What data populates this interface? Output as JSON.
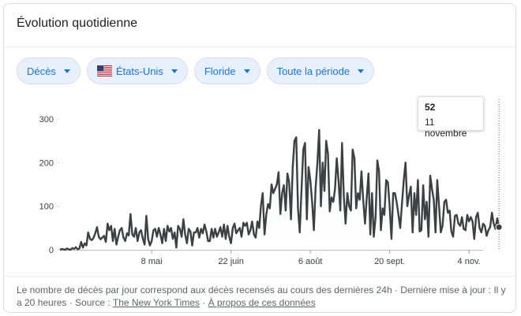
{
  "title": "Évolution quotidienne",
  "filters": [
    {
      "label": "Décès"
    },
    {
      "label": "États-Unis",
      "flag": "us-flag-icon"
    },
    {
      "label": "Floride"
    },
    {
      "label": "Toute la période"
    }
  ],
  "tooltip": {
    "value": "52",
    "date": "11 novembre"
  },
  "footer": {
    "text": "Le nombre de décès par jour correspond aux décès recensés au cours des dernières 24h · Dernière mise à jour : Il y a 20 heures · Source :",
    "source_link": "The New York Times",
    "dot": "·",
    "about_link": "À propos de ces données"
  },
  "colors": {
    "line": "#3c4043",
    "area": "#e8eaed",
    "chip_bg": "#e8f0fe",
    "chip_text": "#1a73e8"
  },
  "chart_data": {
    "type": "line",
    "title": "",
    "xlabel": "",
    "ylabel": "",
    "ylim": [
      0,
      300
    ],
    "yticks": [
      0,
      100,
      200,
      300
    ],
    "x_range_days": [
      0,
      240
    ],
    "xticks": [
      {
        "day": 52,
        "label": "8 mai"
      },
      {
        "day": 97,
        "label": "22 juin"
      },
      {
        "day": 142,
        "label": "6 août"
      },
      {
        "day": 187,
        "label": "20 sept."
      },
      {
        "day": 232,
        "label": "4 nov."
      }
    ],
    "series": [
      {
        "name": "",
        "start_day": 0,
        "values": [
          0,
          2,
          1,
          0,
          3,
          1,
          0,
          4,
          2,
          6,
          1,
          3,
          18,
          5,
          15,
          10,
          40,
          25,
          22,
          27,
          38,
          52,
          30,
          24,
          28,
          32,
          18,
          60,
          45,
          55,
          20,
          48,
          12,
          30,
          45,
          50,
          28,
          20,
          38,
          33,
          82,
          35,
          30,
          50,
          20,
          40,
          45,
          25,
          12,
          78,
          25,
          10,
          20,
          45,
          48,
          30,
          50,
          35,
          15,
          48,
          20,
          55,
          42,
          50,
          25,
          40,
          5,
          55,
          48,
          30,
          70,
          35,
          15,
          48,
          42,
          10,
          40,
          40,
          50,
          28,
          48,
          38,
          58,
          42,
          20,
          20,
          48,
          28,
          48,
          30,
          40,
          52,
          30,
          58,
          25,
          55,
          30,
          15,
          50,
          60,
          38,
          45,
          50,
          30,
          62,
          55,
          62,
          35,
          45,
          65,
          35,
          28,
          65,
          50,
          102,
          130,
          35,
          80,
          105,
          95,
          150,
          130,
          140,
          150,
          178,
          82,
          130,
          148,
          90,
          175,
          155,
          70,
          190,
          250,
          258,
          95,
          40,
          140,
          230,
          245,
          70,
          190,
          160,
          110,
          45,
          142,
          200,
          275,
          100,
          200,
          135,
          250,
          220,
          88,
          120,
          110,
          140,
          210,
          158,
          90,
          245,
          120,
          60,
          130,
          100,
          90,
          230,
          210,
          95,
          130,
          115,
          180,
          115,
          60,
          120,
          175,
          35,
          130,
          30,
          75,
          205,
          180,
          45,
          95,
          80,
          160,
          155,
          100,
          25,
          130,
          130,
          108,
          80,
          50,
          108,
          160,
          200,
          100,
          125,
          145,
          40,
          130,
          80,
          160,
          42,
          45,
          148,
          70,
          110,
          30,
          170,
          140,
          115,
          40,
          160,
          100,
          40,
          55,
          110,
          115,
          85,
          90,
          42,
          30,
          78,
          80,
          60,
          55,
          75,
          48,
          45,
          80,
          65,
          75,
          65,
          25,
          75,
          85,
          50,
          40,
          60,
          55,
          32,
          45,
          52,
          85,
          60,
          48,
          72,
          52
        ]
      }
    ],
    "highlight": {
      "label": "11 novembre",
      "value": 52
    },
    "grid": false
  }
}
